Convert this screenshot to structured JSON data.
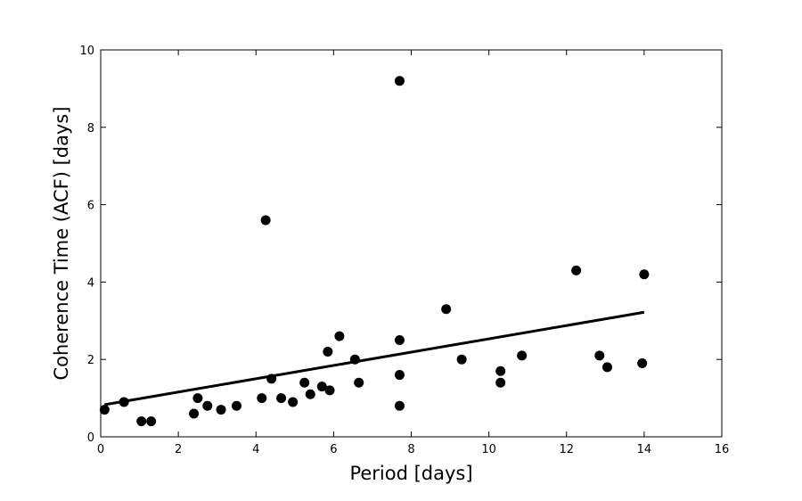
{
  "chart_data": {
    "type": "scatter",
    "title": "",
    "xlabel": "Period [days]",
    "ylabel": "Coherence Time (ACF) [days]",
    "xlim": [
      0,
      16
    ],
    "ylim": [
      0,
      10
    ],
    "xticks": [
      "0",
      "2",
      "4",
      "6",
      "8",
      "10",
      "12",
      "14",
      "16"
    ],
    "yticks": [
      "0",
      "2",
      "4",
      "6",
      "8",
      "10"
    ],
    "grid": false,
    "points": [
      {
        "x": 0.1,
        "y": 0.7
      },
      {
        "x": 0.6,
        "y": 0.9
      },
      {
        "x": 1.05,
        "y": 0.4
      },
      {
        "x": 1.3,
        "y": 0.4
      },
      {
        "x": 2.4,
        "y": 0.6
      },
      {
        "x": 2.5,
        "y": 1.0
      },
      {
        "x": 2.75,
        "y": 0.8
      },
      {
        "x": 3.1,
        "y": 0.7
      },
      {
        "x": 3.5,
        "y": 0.8
      },
      {
        "x": 4.15,
        "y": 1.0
      },
      {
        "x": 4.25,
        "y": 5.6
      },
      {
        "x": 4.4,
        "y": 1.5
      },
      {
        "x": 4.65,
        "y": 1.0
      },
      {
        "x": 4.95,
        "y": 0.9
      },
      {
        "x": 5.25,
        "y": 1.4
      },
      {
        "x": 5.4,
        "y": 1.1
      },
      {
        "x": 5.7,
        "y": 1.3
      },
      {
        "x": 5.85,
        "y": 2.2
      },
      {
        "x": 5.9,
        "y": 1.2
      },
      {
        "x": 6.15,
        "y": 2.6
      },
      {
        "x": 6.55,
        "y": 2.0
      },
      {
        "x": 6.65,
        "y": 1.4
      },
      {
        "x": 7.7,
        "y": 9.2
      },
      {
        "x": 7.7,
        "y": 2.5
      },
      {
        "x": 7.7,
        "y": 1.6
      },
      {
        "x": 7.7,
        "y": 0.8
      },
      {
        "x": 8.9,
        "y": 3.3
      },
      {
        "x": 9.3,
        "y": 2.0
      },
      {
        "x": 10.3,
        "y": 1.7
      },
      {
        "x": 10.3,
        "y": 1.4
      },
      {
        "x": 10.85,
        "y": 2.1
      },
      {
        "x": 12.25,
        "y": 4.3
      },
      {
        "x": 12.85,
        "y": 2.1
      },
      {
        "x": 13.05,
        "y": 1.8
      },
      {
        "x": 13.95,
        "y": 1.9
      },
      {
        "x": 14.0,
        "y": 4.2
      }
    ],
    "fit_line": {
      "x": [
        0.1,
        14.0
      ],
      "y": [
        0.83,
        3.22
      ]
    },
    "colors": {
      "points": "#000000",
      "line": "#000000",
      "axes": "#000000"
    }
  }
}
